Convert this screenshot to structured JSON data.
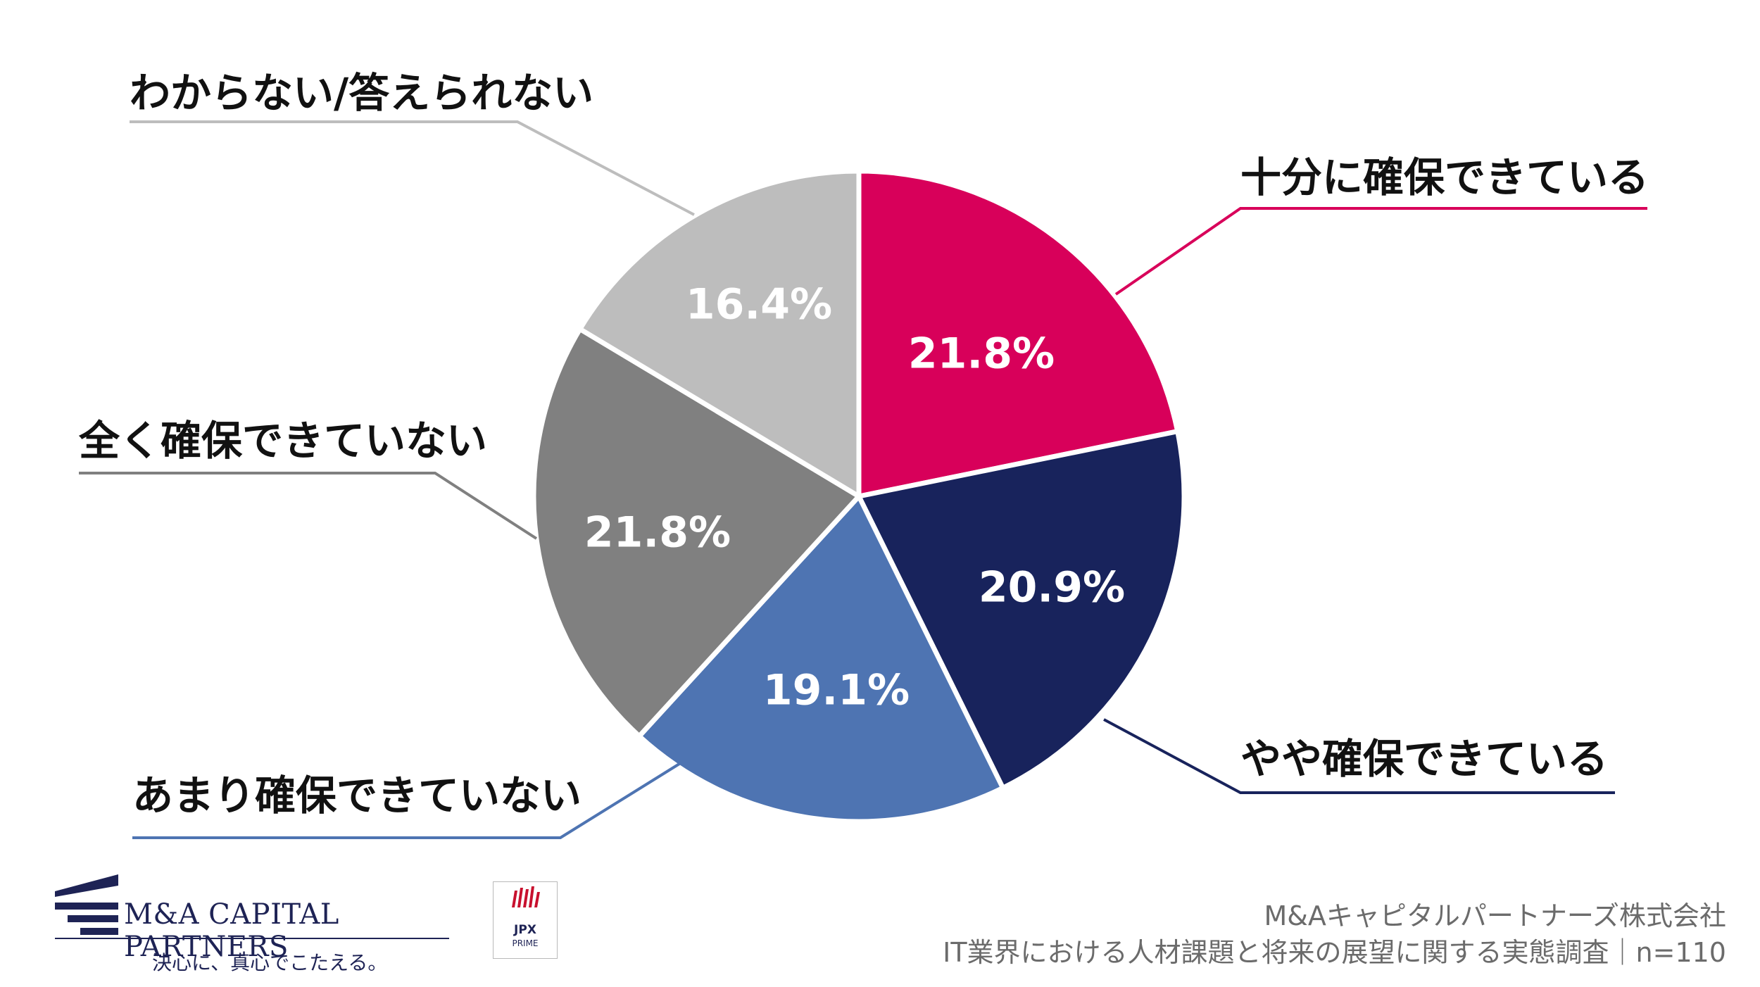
{
  "chart_data": {
    "type": "pie",
    "categories": [
      "十分に確保できている",
      "やや確保できている",
      "あまり確保できていない",
      "全く確保できていない",
      "わからない/答えられない"
    ],
    "values": [
      21.8,
      20.9,
      19.1,
      21.8,
      16.4
    ],
    "value_labels": [
      "21.8%",
      "20.9%",
      "19.1%",
      "21.8%",
      "16.4%"
    ],
    "colors": [
      "#d8005a",
      "#18235c",
      "#4e74b2",
      "#808080",
      "#bdbdbd"
    ],
    "start": "12 o'clock, clockwise",
    "legend": "none (leader-line callouts)"
  },
  "footer": {
    "credit": "M&Aキャピタルパートナーズ株式会社",
    "survey": "IT業界における人材課題と将来の展望に関する実態調査｜n=110"
  },
  "logo": {
    "brand": "M&A CAPITAL PARTNERS",
    "tagline": "決心に、真心でこたえる。",
    "badge": "JPX",
    "badge_sub": "PRIME"
  }
}
